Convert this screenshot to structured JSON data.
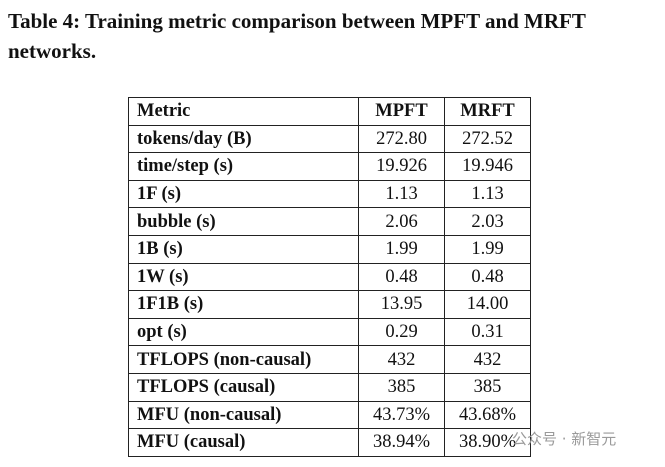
{
  "caption": "Table 4: Training metric comparison between MPFT and MRFT networks.",
  "table": {
    "header": [
      "Metric",
      "MPFT",
      "MRFT"
    ],
    "rows": [
      [
        "tokens/day (B)",
        "272.80",
        "272.52"
      ],
      [
        "time/step (s)",
        "19.926",
        "19.946"
      ],
      [
        "1F (s)",
        "1.13",
        "1.13"
      ],
      [
        "bubble (s)",
        "2.06",
        "2.03"
      ],
      [
        "1B (s)",
        "1.99",
        "1.99"
      ],
      [
        "1W (s)",
        "0.48",
        "0.48"
      ],
      [
        "1F1B (s)",
        "13.95",
        "14.00"
      ],
      [
        "opt (s)",
        "0.29",
        "0.31"
      ],
      [
        "TFLOPS (non-causal)",
        "432",
        "432"
      ],
      [
        "TFLOPS (causal)",
        "385",
        "385"
      ],
      [
        "MFU (non-causal)",
        "43.73%",
        "43.68%"
      ],
      [
        "MFU (causal)",
        "38.94%",
        "38.90%"
      ]
    ]
  },
  "watermark": "公众号 · 新智元"
}
